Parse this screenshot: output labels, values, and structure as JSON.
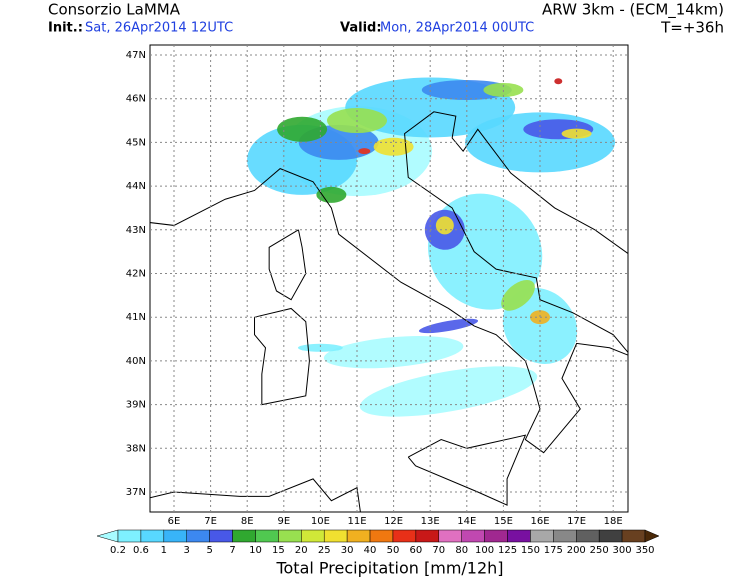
{
  "header": {
    "title": "Consorzio LaMMA",
    "init_label": "Init.:",
    "init_value": "Sat, 26Apr2014 12UTC",
    "valid_label": "Valid:",
    "valid_value": "Mon, 28Apr2014 00UTC",
    "model": "ARW 3km - (ECM_14km)",
    "lead": "T=+36h"
  },
  "map": {
    "lat_labels": [
      "47N",
      "46N",
      "45N",
      "44N",
      "43N",
      "42N",
      "41N",
      "40N",
      "39N",
      "38N",
      "37N"
    ],
    "lon_labels": [
      "6E",
      "7E",
      "8E",
      "9E",
      "10E",
      "11E",
      "12E",
      "13E",
      "14E",
      "15E",
      "16E",
      "17E",
      "18E"
    ]
  },
  "colorbar": {
    "title": "Total Precipitation [mm/12h]",
    "labels": [
      "0.2",
      "0.6",
      "1",
      "3",
      "5",
      "7",
      "10",
      "15",
      "20",
      "25",
      "30",
      "40",
      "50",
      "60",
      "70",
      "80",
      "100",
      "125",
      "150",
      "175",
      "200",
      "250",
      "300",
      "350"
    ],
    "colors": [
      "#a8fcff",
      "#7ef0ff",
      "#58d8ff",
      "#38b4f8",
      "#3c88f0",
      "#4858e8",
      "#30a830",
      "#50c850",
      "#98e050",
      "#d0e838",
      "#f0e030",
      "#f0b020",
      "#f07810",
      "#e83018",
      "#c81818",
      "#e070c0",
      "#c048b0",
      "#a02890",
      "#7810a0",
      "#a8a8a8",
      "#888888",
      "#606060",
      "#404040",
      "#684020",
      "#4a2808"
    ]
  }
}
